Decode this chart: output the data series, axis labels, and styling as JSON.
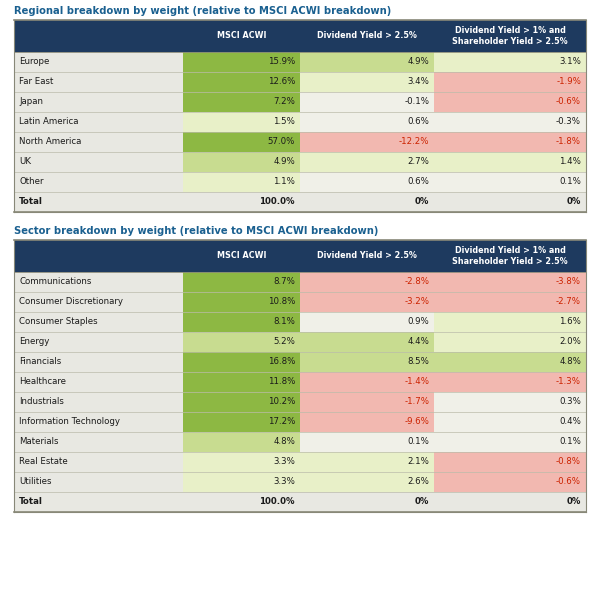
{
  "title1": "Regional breakdown by weight (relative to MSCI ACWI breakdown)",
  "title2": "Sector breakdown by weight (relative to MSCI ACWI breakdown)",
  "col_headers": [
    "MSCI ACWI",
    "Dividend Yield > 2.5%",
    "Dividend Yield > 1% and\nShareholder Yield > 2.5%"
  ],
  "regional_rows": [
    [
      "Europe",
      "15.9%",
      "4.9%",
      "3.1%"
    ],
    [
      "Far East",
      "12.6%",
      "3.4%",
      "-1.9%"
    ],
    [
      "Japan",
      "7.2%",
      "-0.1%",
      "-0.6%"
    ],
    [
      "Latin America",
      "1.5%",
      "0.6%",
      "-0.3%"
    ],
    [
      "North America",
      "57.0%",
      "-12.2%",
      "-1.8%"
    ],
    [
      "UK",
      "4.9%",
      "2.7%",
      "1.4%"
    ],
    [
      "Other",
      "1.1%",
      "0.6%",
      "0.1%"
    ],
    [
      "Total",
      "100.0%",
      "0%",
      "0%"
    ]
  ],
  "sector_rows": [
    [
      "Communications",
      "8.7%",
      "-2.8%",
      "-3.8%"
    ],
    [
      "Consumer Discretionary",
      "10.8%",
      "-3.2%",
      "-2.7%"
    ],
    [
      "Consumer Staples",
      "8.1%",
      "0.9%",
      "1.6%"
    ],
    [
      "Energy",
      "5.2%",
      "4.4%",
      "2.0%"
    ],
    [
      "Financials",
      "16.8%",
      "8.5%",
      "4.8%"
    ],
    [
      "Healthcare",
      "11.8%",
      "-1.4%",
      "-1.3%"
    ],
    [
      "Industrials",
      "10.2%",
      "-1.7%",
      "0.3%"
    ],
    [
      "Information Technology",
      "17.2%",
      "-9.6%",
      "0.4%"
    ],
    [
      "Materials",
      "4.8%",
      "0.1%",
      "0.1%"
    ],
    [
      "Real Estate",
      "3.3%",
      "2.1%",
      "-0.8%"
    ],
    [
      "Utilities",
      "3.3%",
      "2.6%",
      "-0.6%"
    ],
    [
      "Total",
      "100.0%",
      "0%",
      "0%"
    ]
  ],
  "header_bg": "#1e3a5f",
  "header_fg": "#ffffff",
  "col0_bg": "#e8e8e2",
  "total_row_bg": "#dcdcd4",
  "cell_strong_red": "#d9534f",
  "cell_light_red": "#f2b8b0",
  "cell_strong_green": "#8db843",
  "cell_medium_green": "#c8dc90",
  "cell_light_green": "#e8f0c8",
  "cell_neutral": "#f0f0e8",
  "title_color": "#1a6090",
  "text_dark": "#1a1a1a",
  "text_red": "#cc2200",
  "border_light": "#bbbbaa",
  "border_dark": "#888878",
  "bg_white": "#ffffff"
}
